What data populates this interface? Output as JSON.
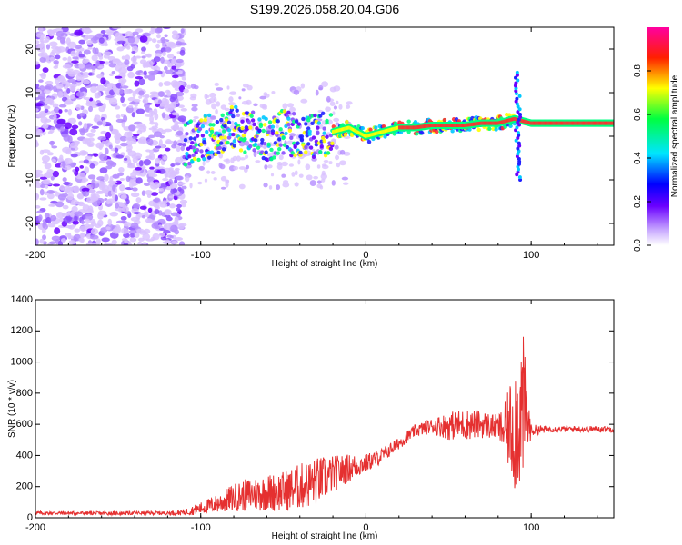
{
  "chart_data": [
    {
      "type": "heatmap",
      "title": "S199.2026.058.20.04.G06",
      "xlabel": "Height of straight line (km)",
      "ylabel": "Frequency (Hz)",
      "xlim": [
        -200,
        150
      ],
      "ylim": [
        -25,
        25
      ],
      "xticks": [
        -200,
        -100,
        0,
        100
      ],
      "yticks": [
        -20,
        -10,
        0,
        10,
        20
      ],
      "colorbar": {
        "label": "Normalized spectral amplitude",
        "range": [
          0,
          1
        ],
        "ticks": [
          "0.0",
          "0.2",
          "0.4",
          "0.6",
          "0.8"
        ],
        "tick_values": [
          0.0,
          0.2,
          0.4,
          0.6,
          0.8
        ]
      },
      "ridge": {
        "x": [
          -110,
          -95,
          -80,
          -70,
          -60,
          -50,
          -40,
          -30,
          -20,
          -10,
          0,
          10,
          20,
          30,
          40,
          50,
          60,
          70,
          80,
          90,
          100,
          110,
          120,
          130,
          140,
          150
        ],
        "y": [
          -2,
          0,
          2,
          1,
          -1,
          1,
          0,
          0,
          1,
          2,
          0,
          1,
          2,
          2,
          2.5,
          2.5,
          2.5,
          3,
          3,
          4,
          3,
          3,
          3,
          3,
          3,
          3
        ]
      },
      "spike": {
        "x": 92,
        "ylim": [
          -10,
          15
        ]
      },
      "noise_region": {
        "xlim": [
          -200,
          -110
        ],
        "ylim": [
          -25,
          25
        ]
      }
    },
    {
      "type": "line",
      "title": "",
      "xlabel": "Height of straight line (km)",
      "ylabel": "SNR (10 * v/v)",
      "xlim": [
        -200,
        150
      ],
      "ylim": [
        0,
        1400
      ],
      "xticks": [
        -200,
        -100,
        0,
        100
      ],
      "yticks": [
        0,
        200,
        400,
        600,
        800,
        1000,
        1200,
        1400
      ],
      "color": "#e53030",
      "series": [
        {
          "name": "SNR",
          "x": [
            -200,
            -180,
            -160,
            -140,
            -120,
            -110,
            -100,
            -90,
            -80,
            -70,
            -60,
            -50,
            -40,
            -30,
            -20,
            -10,
            0,
            10,
            20,
            30,
            40,
            50,
            60,
            70,
            80,
            85,
            90,
            95,
            100,
            110,
            120,
            130,
            140,
            150
          ],
          "values": [
            30,
            30,
            28,
            30,
            30,
            35,
            60,
            90,
            130,
            150,
            160,
            170,
            200,
            230,
            280,
            320,
            350,
            400,
            480,
            560,
            590,
            590,
            600,
            600,
            580,
            560,
            600,
            700,
            560,
            570,
            570,
            570,
            570,
            570
          ],
          "amplitude": [
            12,
            12,
            12,
            12,
            12,
            20,
            40,
            60,
            90,
            110,
            120,
            130,
            150,
            160,
            120,
            90,
            60,
            50,
            40,
            40,
            50,
            90,
            100,
            90,
            80,
            200,
            450,
            500,
            40,
            20,
            20,
            20,
            20,
            20
          ]
        }
      ]
    }
  ]
}
